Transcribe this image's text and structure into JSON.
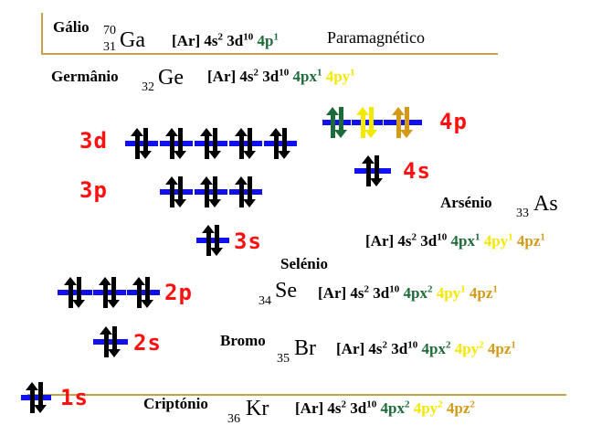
{
  "elements": [
    {
      "name": "Gálio",
      "mass": "70",
      "z": "31",
      "symbol": "Ga",
      "config_base": "[Ar] 4s",
      "s_exp": "2",
      "d_text": " 3d",
      "d_exp": "10",
      "p_terms": [
        {
          "text": "4p",
          "exp": "1",
          "color": "green"
        }
      ],
      "note": "Paramagnético"
    },
    {
      "name": "Germânio",
      "z": "32",
      "symbol": "Ge",
      "config_base": "[Ar] 4s",
      "s_exp": "2",
      "d_text": " 3d",
      "d_exp": "10",
      "p_terms": [
        {
          "text": "4px",
          "exp": "1",
          "color": "green"
        },
        {
          "text": "4py",
          "exp": "1",
          "color": "yellow"
        }
      ]
    },
    {
      "name": "Arsénio",
      "z": "33",
      "symbol": "As",
      "config_base": "[Ar] 4s",
      "s_exp": "2",
      "d_text": " 3d",
      "d_exp": "10",
      "p_terms": [
        {
          "text": "4px",
          "exp": "1",
          "color": "green"
        },
        {
          "text": "4py",
          "exp": "1",
          "color": "yellow"
        },
        {
          "text": "4pz",
          "exp": "1",
          "color": "orange"
        }
      ]
    },
    {
      "name": "Selénio",
      "z": "34",
      "symbol": "Se",
      "config_base": "[Ar] 4s",
      "s_exp": "2",
      "d_text": " 3d",
      "d_exp": "10",
      "p_terms": [
        {
          "text": "4px",
          "exp": "2",
          "color": "green"
        },
        {
          "text": "4py",
          "exp": "1",
          "color": "yellow"
        },
        {
          "text": "4pz",
          "exp": "1",
          "color": "orange"
        }
      ]
    },
    {
      "name": "Bromo",
      "z": "35",
      "symbol": "Br",
      "config_base": "[Ar] 4s",
      "s_exp": "2",
      "d_text": " 3d",
      "d_exp": "10",
      "p_terms": [
        {
          "text": "4px",
          "exp": "2",
          "color": "green"
        },
        {
          "text": "4py",
          "exp": "2",
          "color": "yellow"
        },
        {
          "text": "4pz",
          "exp": "1",
          "color": "orange"
        }
      ]
    },
    {
      "name": "Criptónio",
      "z": "36",
      "symbol": "Kr",
      "config_base": "[Ar] 4s",
      "s_exp": "2",
      "d_text": " 3d",
      "d_exp": "10",
      "p_terms": [
        {
          "text": "4px",
          "exp": "2",
          "color": "green"
        },
        {
          "text": "4py",
          "exp": "2",
          "color": "yellow"
        },
        {
          "text": "4pz",
          "exp": "2",
          "color": "orange"
        }
      ]
    }
  ],
  "orbitals": {
    "labels": {
      "d3": "3d",
      "p3": "3p",
      "p4": "4p",
      "s4": "4s",
      "s3": "3s",
      "p2": "2p",
      "s2": "2s",
      "s1": "1s"
    },
    "p4_boxes": [
      {
        "color": "green",
        "electrons": 2
      },
      {
        "color": "yellow",
        "electrons": 2
      },
      {
        "color": "orange",
        "electrons": 2
      }
    ],
    "colors": {
      "label": "#ff1010",
      "bar": "#1010ee",
      "arrow": "#000000",
      "green": "#1e6b3a",
      "yellow": "#f5e800",
      "orange": "#d39a18"
    }
  }
}
